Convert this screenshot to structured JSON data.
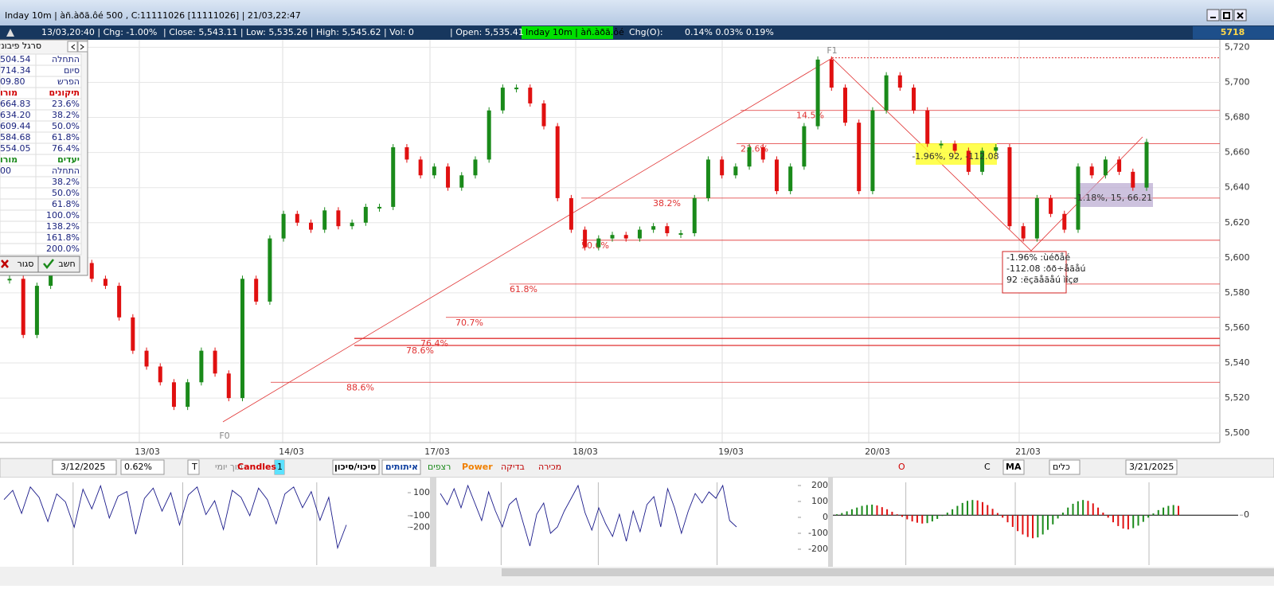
{
  "window": {
    "title": "Inday 10m | àñ.àðã.ôé 500 , C:11111026  [11111026]  | 21/03,22:47"
  },
  "info_bar": {
    "items": [
      "13/03,20:40 | Chg: -1.00%",
      "| Close: 5,543.11 | Low: 5,535.26 | High: 5,545.62 | Vol: 0",
      "| Open: 5,535.41",
      "Inday 10m | àñ.àðã.ôé",
      "Chg(O):",
      "0.14% 0.03% 0.19%"
    ],
    "last": "5718"
  },
  "fib_panel": {
    "title": "סרגל פיבונאצ",
    "rows": [
      {
        "a": "504.54",
        "b": "התחלה"
      },
      {
        "a": "714.34",
        "b": "סיום"
      },
      {
        "a": "09.80",
        "b": "הפרש"
      },
      {
        "a": "מורו",
        "b": "תיקונים",
        "color": "#d00000"
      },
      {
        "a": "664.83",
        "b": "23.6%"
      },
      {
        "a": "634.20",
        "b": "38.2%"
      },
      {
        "a": "609.44",
        "b": "50.0%"
      },
      {
        "a": "584.68",
        "b": "61.8%"
      },
      {
        "a": "554.05",
        "b": "76.4%"
      },
      {
        "a": "מורו",
        "b": "יעדים",
        "color": "#1a8a1a"
      },
      {
        "a": "00",
        "b": "התחלה"
      },
      {
        "b": "38.2%"
      },
      {
        "b": "50.0%"
      },
      {
        "b": "61.8%"
      },
      {
        "b": "100.0%"
      },
      {
        "b": "138.2%"
      },
      {
        "b": "161.8%"
      },
      {
        "b": "200.0%"
      }
    ],
    "buttons": [
      "סגור",
      "חשב"
    ]
  },
  "chart_data": {
    "type": "candlestick",
    "up_color": "#1a8a1a",
    "down_color": "#e01010",
    "closes": [
      5588,
      5556,
      5584,
      5620,
      5611,
      5597,
      5588,
      5584,
      5566,
      5547,
      5538,
      5529,
      5515,
      5529,
      5547,
      5534,
      5520,
      5588,
      5575,
      5611,
      5625,
      5620,
      5616,
      5627,
      5618,
      5620,
      5629,
      5629,
      5663,
      5656,
      5647,
      5652,
      5640,
      5647,
      5656,
      5684,
      5697,
      5697,
      5688,
      5675,
      5634,
      5616,
      5606,
      5611,
      5613,
      5611,
      5616,
      5618,
      5614,
      5614,
      5634,
      5656,
      5647,
      5652,
      5663,
      5656,
      5638,
      5652,
      5675,
      5713,
      5697,
      5677,
      5638,
      5684,
      5704,
      5697,
      5684,
      5665,
      5665,
      5661,
      5649,
      5661,
      5663,
      5618,
      5611,
      5634,
      5625,
      5616,
      5652,
      5647,
      5656,
      5649,
      5640,
      5666
    ],
    "ylim": [
      5496,
      5722
    ],
    "yticks": [
      {
        "value": 5500,
        "label": "5,500"
      },
      {
        "value": 5520,
        "label": "5,520"
      },
      {
        "value": 5540,
        "label": "5,540"
      },
      {
        "value": 5560,
        "label": "5,560"
      },
      {
        "value": 5580,
        "label": "5,580"
      },
      {
        "value": 5600,
        "label": "5,600"
      },
      {
        "value": 5620,
        "label": "5,620"
      },
      {
        "value": 5640,
        "label": "5,640"
      },
      {
        "value": 5660,
        "label": "5,660"
      },
      {
        "value": 5680,
        "label": "5,680"
      },
      {
        "value": 5700,
        "label": "5,700"
      },
      {
        "value": 5720,
        "label": "5,720"
      }
    ],
    "x_labels": [
      "13/03",
      "14/03",
      "17/03",
      "18/03",
      "19/03",
      "20/03",
      "21/03"
    ],
    "fib_lines": [
      {
        "level": 5684,
        "label": "14.5%"
      },
      {
        "level": 5665,
        "label": "23.6%"
      },
      {
        "level": 5634,
        "label": "38.2%"
      },
      {
        "level": 5610,
        "label": "50.0%"
      },
      {
        "level": 5585,
        "label": "61.8%"
      },
      {
        "level": 5566,
        "label": "70.7%"
      },
      {
        "level": 5554,
        "label": "76.4%"
      },
      {
        "level": 5550,
        "label": "78.6%"
      },
      {
        "level": 5529,
        "label": "88.6%"
      }
    ],
    "top_line": 5714,
    "anchors": [
      "F0",
      "F1"
    ],
    "box_labels": [
      "-1.96%, 92, -112.08",
      "-1.18%, 15, 66.21"
    ],
    "note": [
      "-1.96% :ùéðåé",
      "-112.08 :ðð÷åãåú",
      "92 :ëçãåãåú ìîçø"
    ]
  },
  "toolbar": {
    "items": [
      "3/12/2025",
      "0.62%",
      "T",
      "תוך יומי",
      "Candles",
      "1",
      "סיכוי/סיכון",
      "איתותים",
      "רצפים",
      "Power",
      "בדיקה",
      "מכירה",
      "O",
      "C",
      "MA",
      "כלים",
      "3/21/2025"
    ]
  },
  "indicators": [
    {
      "yticks": [
        100,
        -100,
        -200
      ],
      "ylim": [
        -460,
        190
      ],
      "values": [
        40,
        120,
        -80,
        150,
        60,
        -150,
        90,
        20,
        -200,
        130,
        -40,
        160,
        -120,
        70,
        110,
        -260,
        50,
        140,
        -60,
        100,
        -180,
        80,
        150,
        -90,
        30,
        -220,
        120,
        60,
        -100,
        140,
        40,
        -170,
        90,
        150,
        -30,
        110,
        -140,
        60,
        -380,
        -180
      ]
    },
    {
      "yticks": [
        200,
        100,
        0,
        -100,
        -200
      ],
      "ylim": [
        -250,
        220
      ],
      "values": [
        150,
        80,
        180,
        60,
        200,
        90,
        -20,
        160,
        40,
        -60,
        80,
        120,
        -30,
        -180,
        20,
        90,
        -100,
        -60,
        40,
        120,
        200,
        30,
        -80,
        60,
        -40,
        -120,
        20,
        -150,
        40,
        -90,
        80,
        130,
        -60,
        180,
        60,
        -100,
        40,
        150,
        90,
        160,
        120,
        200,
        -20,
        -60
      ]
    },
    {
      "yticks": [
        0
      ],
      "ylim": [
        -100,
        78
      ],
      "up_color": "#1a8a1a",
      "down_color": "#e01010",
      "values": [
        2,
        5,
        9,
        14,
        18,
        22,
        24,
        25,
        23,
        19,
        14,
        8,
        2,
        -4,
        -10,
        -15,
        -18,
        -20,
        -19,
        -15,
        -9,
        -2,
        6,
        14,
        22,
        29,
        34,
        36,
        35,
        31,
        24,
        15,
        5,
        -6,
        -17,
        -28,
        -38,
        -46,
        -52,
        -55,
        -53,
        -46,
        -35,
        -22,
        -8,
        6,
        18,
        27,
        33,
        36,
        34,
        28,
        18,
        6,
        -6,
        -17,
        -26,
        -32,
        -34,
        -31,
        -25,
        -16,
        -6,
        4,
        12,
        18,
        22,
        24,
        22
      ]
    }
  ]
}
